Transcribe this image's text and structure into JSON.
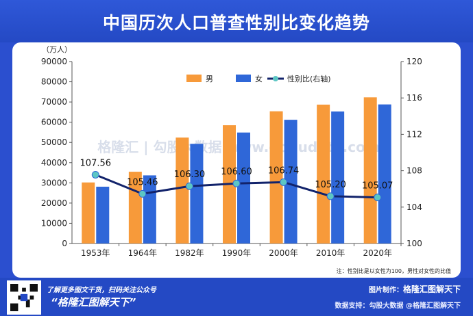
{
  "page": {
    "title": "中国历次人口普查性别比变化趋势"
  },
  "chart_data": {
    "type": "bar",
    "categories": [
      "1953年",
      "1964年",
      "1982年",
      "1990年",
      "2000年",
      "2010年",
      "2020年"
    ],
    "series": [
      {
        "name": "男",
        "type": "bar",
        "axis": "left",
        "color": "#f79a3a",
        "values": [
          30200,
          35500,
          52400,
          58500,
          65400,
          68700,
          72300
        ]
      },
      {
        "name": "女",
        "type": "bar",
        "axis": "left",
        "color": "#2f67d8",
        "values": [
          28100,
          33700,
          49300,
          54900,
          61200,
          65300,
          68800
        ]
      },
      {
        "name": "性别比(右轴)",
        "type": "line",
        "axis": "right",
        "color": "#12236b",
        "marker_color": "#5cc6c4",
        "values": [
          107.56,
          105.46,
          106.3,
          106.6,
          106.74,
          105.2,
          105.07
        ],
        "labels": [
          "107.56",
          "105.46",
          "106.30",
          "106.60",
          "106.74",
          "105.20",
          "105.07"
        ]
      }
    ],
    "y_left": {
      "unit": "（万人）",
      "min": 0,
      "max": 90000,
      "ticks": [
        "0",
        "10000",
        "20000",
        "30000",
        "40000",
        "50000",
        "60000",
        "70000",
        "80000",
        "90000"
      ]
    },
    "y_right": {
      "min": 100,
      "max": 120,
      "ticks": [
        "100",
        "104",
        "108",
        "112",
        "116",
        "120"
      ]
    },
    "grid": false,
    "legend_position": "top-right",
    "note": "注：性别比是以女性为100，男性对女性的比值",
    "watermark": "格隆汇 | 勾股大数据 www.gogudata.com"
  },
  "footer": {
    "line1": "了解更多图文干货，扫码关注公众号",
    "line2": "“格隆汇图解天下”",
    "maker_label": "图片制作：",
    "maker_name": "格隆汇图解天下",
    "support": "数据支持：勾股大数据 @格隆汇图解天下"
  }
}
